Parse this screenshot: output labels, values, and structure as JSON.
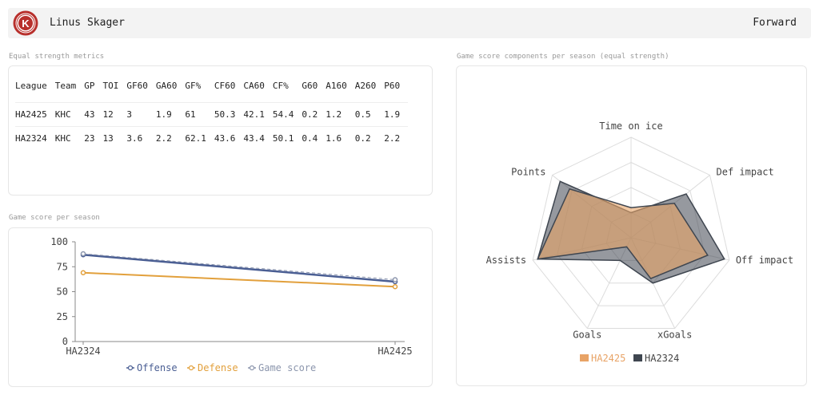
{
  "header": {
    "player_name": "Linus Skager",
    "position": "Forward",
    "logo_letter": "K"
  },
  "metrics_table": {
    "title": "Equal strength metrics",
    "columns": [
      "League",
      "Team",
      "GP",
      "TOI",
      "GF60",
      "GA60",
      "GF%",
      "CF60",
      "CA60",
      "CF%",
      "G60",
      "A160",
      "A260",
      "P60"
    ],
    "rows": [
      [
        "HA2425",
        "KHC",
        "43",
        "12",
        "3",
        "1.9",
        "61",
        "50.3",
        "42.1",
        "54.4",
        "0.2",
        "1.2",
        "0.5",
        "1.9"
      ],
      [
        "HA2324",
        "KHC",
        "23",
        "13",
        "3.6",
        "2.2",
        "62.1",
        "43.6",
        "43.4",
        "50.1",
        "0.4",
        "1.6",
        "0.2",
        "2.2"
      ]
    ]
  },
  "line_chart_title": "Game score per season",
  "radar_chart_title": "Game score components per season (equal strength)",
  "colors": {
    "offense": "#4a5e93",
    "defense": "#e2a03c",
    "game_score": "#8c96ad",
    "ha2425": "#e8a366",
    "ha2324": "#3f4650"
  },
  "chart_data": [
    {
      "type": "line",
      "categories": [
        "HA2324",
        "HA2425"
      ],
      "series": [
        {
          "name": "Offense",
          "values": [
            87,
            60
          ]
        },
        {
          "name": "Defense",
          "values": [
            69,
            55
          ]
        },
        {
          "name": "Game score",
          "values": [
            88,
            62
          ]
        }
      ],
      "ylim": [
        0,
        100
      ],
      "yticks": [
        "0",
        "25",
        "50",
        "75",
        "100"
      ],
      "legend": "bottom"
    },
    {
      "type": "radar",
      "axes": [
        "Time on ice",
        "Def impact",
        "Off impact",
        "xGoals",
        "Goals",
        "Assists",
        "Points"
      ],
      "series": [
        {
          "name": "HA2425",
          "values": [
            0.3,
            0.55,
            0.78,
            0.45,
            0.1,
            0.95,
            0.78
          ]
        },
        {
          "name": "HA2324",
          "values": [
            0.25,
            0.7,
            0.95,
            0.5,
            0.25,
            0.95,
            0.9
          ]
        }
      ],
      "range": [
        0,
        1
      ],
      "legend": "bottom"
    }
  ]
}
